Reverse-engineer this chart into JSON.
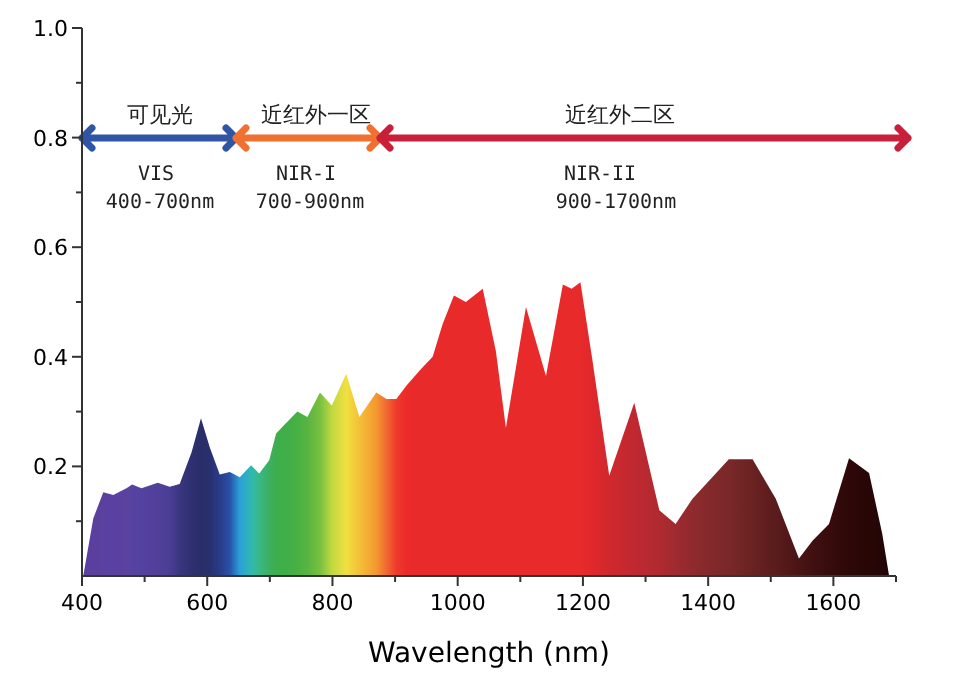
{
  "chart_data": {
    "type": "area",
    "xlabel": "Wavelength (nm)",
    "xlim": [
      400,
      1700
    ],
    "ylim": [
      0,
      1.0
    ],
    "xticks": [
      400,
      {
        "value": 500,
        "label": null
      },
      600,
      {
        "value": 700,
        "label": null
      },
      800,
      {
        "value": 900,
        "label": null
      },
      1000,
      {
        "value": 1100,
        "label": null
      },
      1200,
      {
        "value": 1300,
        "label": null
      },
      1400,
      {
        "value": 1500,
        "label": null
      },
      1600,
      {
        "value": 1700,
        "label": null
      }
    ],
    "yticks": [
      {
        "value": 0.1,
        "label": null
      },
      0.2,
      {
        "value": 0.3,
        "label": null
      },
      0.4,
      {
        "value": 0.5,
        "label": null
      },
      0.6,
      {
        "value": 0.7,
        "label": null
      },
      0.8,
      {
        "value": 0.9,
        "label": null
      },
      {
        "value": 1.0,
        "label": "1.0"
      }
    ],
    "grid": false,
    "series": [
      {
        "type": "area",
        "x": [
          402,
          418,
          434,
          450,
          471,
          480,
          495,
          521,
          540,
          556,
          575,
          590,
          604,
          620,
          636,
          652,
          670,
          683,
          699,
          710,
          726,
          744,
          760,
          780,
          799,
          822,
          843,
          870,
          886,
          902,
          918,
          940,
          960,
          976,
          994,
          1013,
          1040,
          1061,
          1077,
          1109,
          1141,
          1168,
          1182,
          1196,
          1215,
          1242,
          1282,
          1322,
          1348,
          1375,
          1433,
          1471,
          1508,
          1545,
          1567,
          1593,
          1625,
          1657,
          1678,
          1689
        ],
        "values": [
          0,
          0.105,
          0.153,
          0.148,
          0.16,
          0.167,
          0.16,
          0.17,
          0.163,
          0.168,
          0.226,
          0.288,
          0.235,
          0.185,
          0.19,
          0.18,
          0.202,
          0.187,
          0.211,
          0.26,
          0.279,
          0.3,
          0.29,
          0.335,
          0.311,
          0.369,
          0.29,
          0.335,
          0.323,
          0.323,
          0.347,
          0.376,
          0.4,
          0.46,
          0.512,
          0.5,
          0.524,
          0.41,
          0.27,
          0.491,
          0.365,
          0.532,
          0.524,
          0.536,
          0.395,
          0.183,
          0.316,
          0.12,
          0.095,
          0.141,
          0.213,
          0.213,
          0.141,
          0.032,
          0.065,
          0.095,
          0.215,
          0.188,
          0.077,
          0
        ],
        "colors": [
          "#5a3f9e",
          "#5a3f9e",
          "#5b40a0",
          "#5a40a0",
          "#5a42a0",
          "#5842a0",
          "#5542a0",
          "#50409a",
          "#4a3e94",
          "#3a3680",
          "#2e3070",
          "#2a2e68",
          "#28306e",
          "#283c88",
          "#2a50a8",
          "#2aa0d8",
          "#30b8b0",
          "#38b888",
          "#3cb060",
          "#3cae4c",
          "#40ae48",
          "#48b044",
          "#58b440",
          "#78c040",
          "#c0d840",
          "#f0e040",
          "#f4c038",
          "#f49830",
          "#f06a30",
          "#ee3a2c",
          "#ec2a2a",
          "#e82a2a",
          "#e82a2a",
          "#e82a2a",
          "#e82a2a",
          "#e82a2a",
          "#e82a2a",
          "#e82a2a",
          "#e82a2a",
          "#e82a2a",
          "#e82a2a",
          "#e82a2a",
          "#e82a2a",
          "#e82a2a",
          "#e0282c",
          "#d0282e",
          "#c02830",
          "#b02a30",
          "#a02a30",
          "#8e2a2e",
          "#7a2828",
          "#6a2222",
          "#5a1c1c",
          "#4a1414",
          "#401010",
          "#380c0c",
          "#2e0808",
          "#280606",
          "#240606",
          "#200404"
        ]
      }
    ],
    "annotations": [
      "可见光",
      "VIS",
      "400-700nm",
      "近红外一区",
      "NIR-I",
      "700-900nm",
      "近红外二区",
      "NIR-II",
      "900-1700nm"
    ]
  }
}
